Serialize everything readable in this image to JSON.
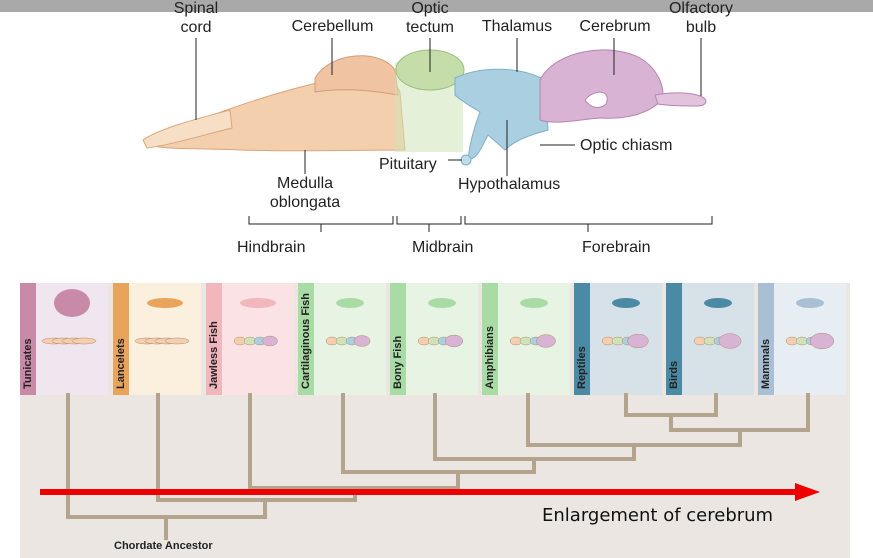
{
  "brain_labels": {
    "spinal_cord": "Spinal\ncord",
    "cerebellum": "Cerebellum",
    "optic_tectum": "Optic\ntectum",
    "thalamus": "Thalamus",
    "cerebrum": "Cerebrum",
    "olfactory_bulb": "Olfactory\nbulb",
    "optic_chiasm": "Optic chiasm",
    "pituitary": "Pituitary",
    "hypothalamus": "Hypothalamus",
    "medulla": "Medulla\noblongata"
  },
  "regions": {
    "hindbrain": "Hindbrain",
    "midbrain": "Midbrain",
    "forebrain": "Forebrain"
  },
  "taxa": [
    {
      "name": "Tunicates",
      "stripe": "#c98aa8",
      "bg": "#f0e6f0"
    },
    {
      "name": "Lancelets",
      "stripe": "#e9a45c",
      "bg": "#fbf0dd"
    },
    {
      "name": "Jawless Fish",
      "stripe": "#f2b6bd",
      "bg": "#fbe3e5"
    },
    {
      "name": "Cartilaginous Fish",
      "stripe": "#a9dba5",
      "bg": "#e7f4e3"
    },
    {
      "name": "Bony Fish",
      "stripe": "#a9dba5",
      "bg": "#e7f4e3"
    },
    {
      "name": "Amphibians",
      "stripe": "#a9dba5",
      "bg": "#e7f4e3"
    },
    {
      "name": "Reptiles",
      "stripe": "#4b8aa5",
      "bg": "#d7e2e8"
    },
    {
      "name": "Birds",
      "stripe": "#4b8aa5",
      "bg": "#d7e2e8"
    },
    {
      "name": "Mammals",
      "stripe": "#a8bfd4",
      "bg": "#e6edf3"
    }
  ],
  "arrow_label": "Enlargement of cerebrum",
  "root_label": "Chordate Ancestor",
  "colors": {
    "hindbrain": "#f3cfae",
    "midbrain": "#cfe3b8",
    "forebrain_teal": "#a9cfe0",
    "cerebrum": "#d9b3d3",
    "tree": "#b3a58d",
    "arrow": "#ee0000"
  }
}
